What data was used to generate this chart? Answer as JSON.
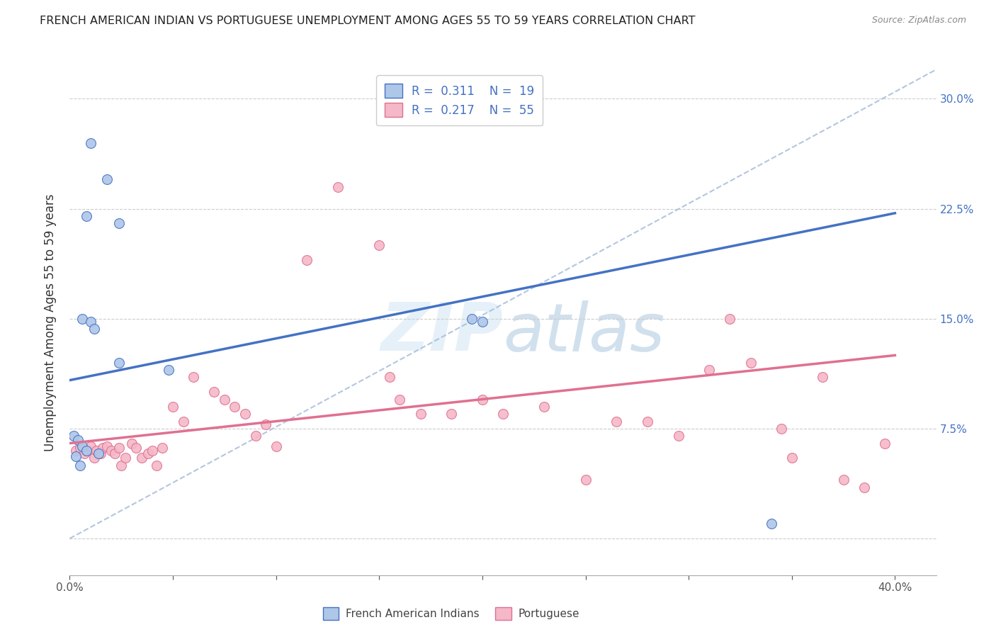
{
  "title": "FRENCH AMERICAN INDIAN VS PORTUGUESE UNEMPLOYMENT AMONG AGES 55 TO 59 YEARS CORRELATION CHART",
  "source": "Source: ZipAtlas.com",
  "ylabel": "Unemployment Among Ages 55 to 59 years",
  "xlim": [
    0.0,
    0.42
  ],
  "ylim": [
    -0.025,
    0.32
  ],
  "xticks": [
    0.0,
    0.05,
    0.1,
    0.15,
    0.2,
    0.25,
    0.3,
    0.35,
    0.4
  ],
  "xtick_labels": [
    "0.0%",
    "",
    "",
    "",
    "",
    "",
    "",
    "",
    "40.0%"
  ],
  "yticks": [
    0.0,
    0.075,
    0.15,
    0.225,
    0.3
  ],
  "yticks_right": [
    0.075,
    0.15,
    0.225,
    0.3
  ],
  "ytick_labels_right": [
    "7.5%",
    "15.0%",
    "22.5%",
    "30.0%"
  ],
  "legend_r1": "R = 0.311",
  "legend_n1": "N = 19",
  "legend_r2": "R = 0.217",
  "legend_n2": "N = 55",
  "color_blue": "#aec6e8",
  "color_pink": "#f4b8c8",
  "line_color_blue": "#4472c4",
  "line_color_pink": "#e07090",
  "line_color_dashed": "#a0b8d8",
  "blue_line_x": [
    0.0,
    0.4
  ],
  "blue_line_y": [
    0.108,
    0.222
  ],
  "pink_line_x": [
    0.0,
    0.4
  ],
  "pink_line_y": [
    0.065,
    0.125
  ],
  "dashed_line_x": [
    0.0,
    0.42
  ],
  "dashed_line_y": [
    0.0,
    0.32
  ],
  "french_x": [
    0.01,
    0.018,
    0.024,
    0.008,
    0.006,
    0.01,
    0.012,
    0.024,
    0.048,
    0.002,
    0.004,
    0.006,
    0.008,
    0.014,
    0.003,
    0.005,
    0.195,
    0.2,
    0.34
  ],
  "french_y": [
    0.27,
    0.245,
    0.215,
    0.22,
    0.15,
    0.148,
    0.143,
    0.12,
    0.115,
    0.07,
    0.067,
    0.063,
    0.06,
    0.058,
    0.056,
    0.05,
    0.15,
    0.148,
    0.01
  ],
  "portuguese_x": [
    0.003,
    0.005,
    0.007,
    0.008,
    0.01,
    0.012,
    0.013,
    0.015,
    0.016,
    0.018,
    0.02,
    0.022,
    0.024,
    0.025,
    0.027,
    0.03,
    0.032,
    0.035,
    0.038,
    0.04,
    0.042,
    0.045,
    0.05,
    0.055,
    0.06,
    0.07,
    0.075,
    0.08,
    0.085,
    0.09,
    0.095,
    0.1,
    0.115,
    0.13,
    0.15,
    0.155,
    0.16,
    0.17,
    0.185,
    0.2,
    0.21,
    0.23,
    0.25,
    0.265,
    0.28,
    0.295,
    0.31,
    0.32,
    0.33,
    0.345,
    0.35,
    0.365,
    0.375,
    0.385,
    0.395
  ],
  "portuguese_y": [
    0.06,
    0.062,
    0.058,
    0.06,
    0.063,
    0.055,
    0.06,
    0.058,
    0.062,
    0.063,
    0.06,
    0.058,
    0.062,
    0.05,
    0.055,
    0.065,
    0.062,
    0.055,
    0.058,
    0.06,
    0.05,
    0.062,
    0.09,
    0.08,
    0.11,
    0.1,
    0.095,
    0.09,
    0.085,
    0.07,
    0.078,
    0.063,
    0.19,
    0.24,
    0.2,
    0.11,
    0.095,
    0.085,
    0.085,
    0.095,
    0.085,
    0.09,
    0.04,
    0.08,
    0.08,
    0.07,
    0.115,
    0.15,
    0.12,
    0.075,
    0.055,
    0.11,
    0.04,
    0.035,
    0.065
  ]
}
